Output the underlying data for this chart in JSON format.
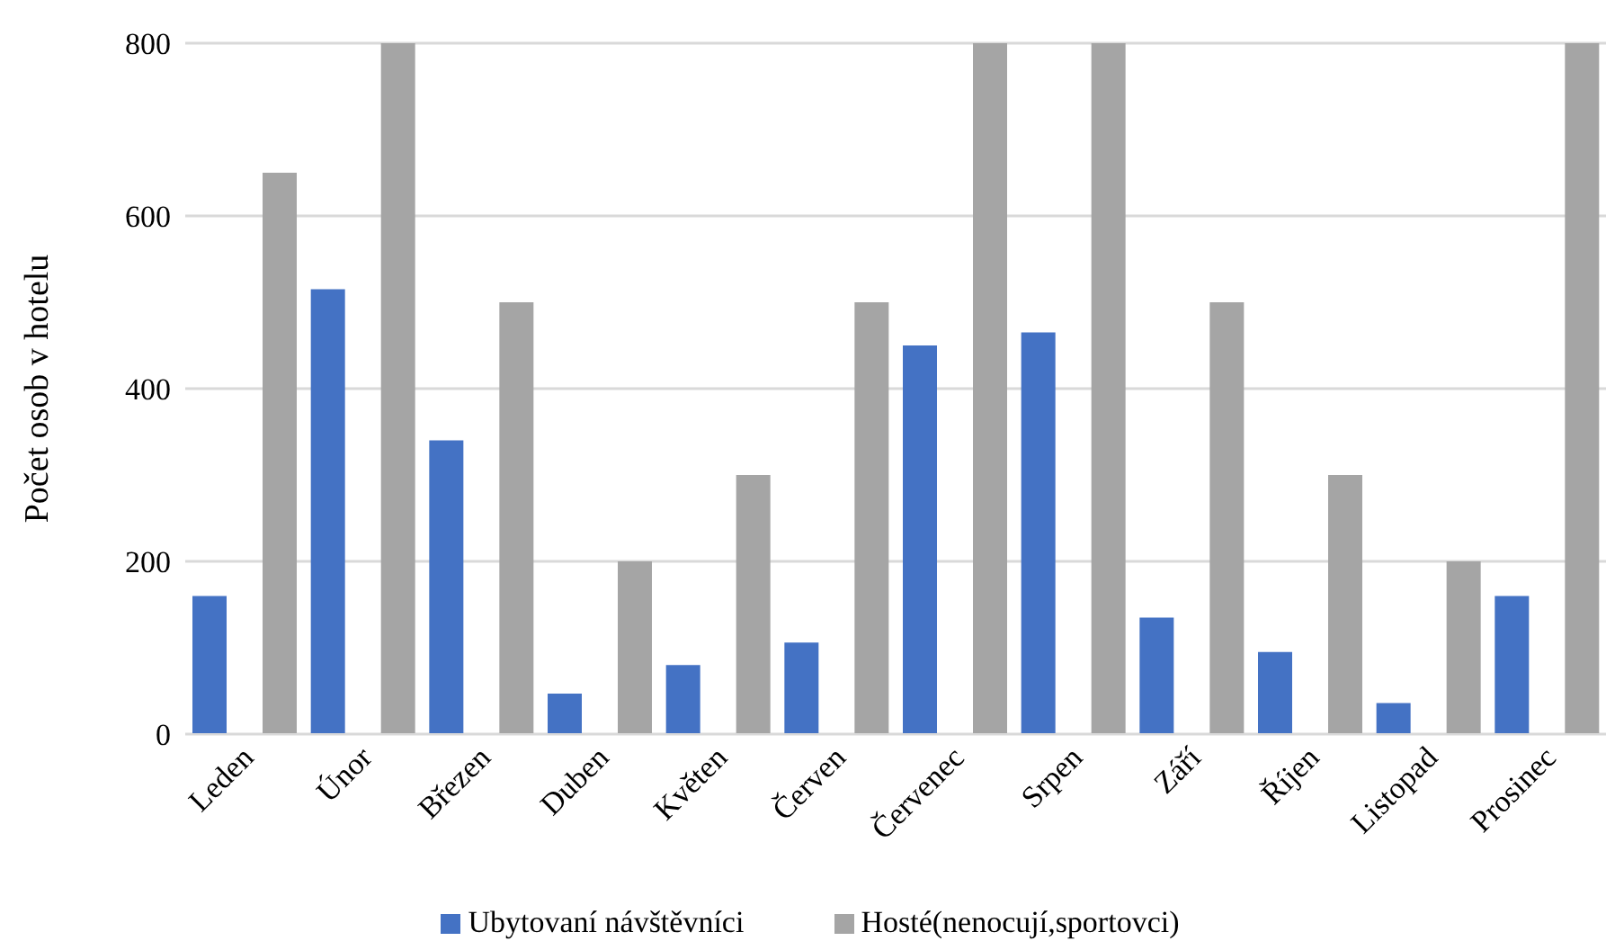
{
  "chart_data": {
    "type": "bar",
    "ylabel": "Počet osob v hotelu",
    "categories": [
      "Leden",
      "Únor",
      "Březen",
      "Duben",
      "Květen",
      "Červen",
      "Červenec",
      "Srpen",
      "Září",
      "Říjen",
      "Listopad",
      "Prosinec"
    ],
    "series": [
      {
        "name": "Ubytovaní návštěvníci",
        "color": "#4472c4",
        "values": [
          160,
          515,
          340,
          47,
          80,
          106,
          450,
          465,
          135,
          95,
          36,
          160
        ]
      },
      {
        "name": "Hosté(nenocují,sportovci)",
        "color": "#a5a5a5",
        "values": [
          650,
          800,
          500,
          200,
          300,
          500,
          800,
          800,
          500,
          300,
          200,
          800
        ]
      }
    ],
    "ylim": [
      0,
      800
    ],
    "yticks": [
      0,
      200,
      400,
      600,
      800
    ],
    "grid": "y",
    "legend": "bottom"
  }
}
